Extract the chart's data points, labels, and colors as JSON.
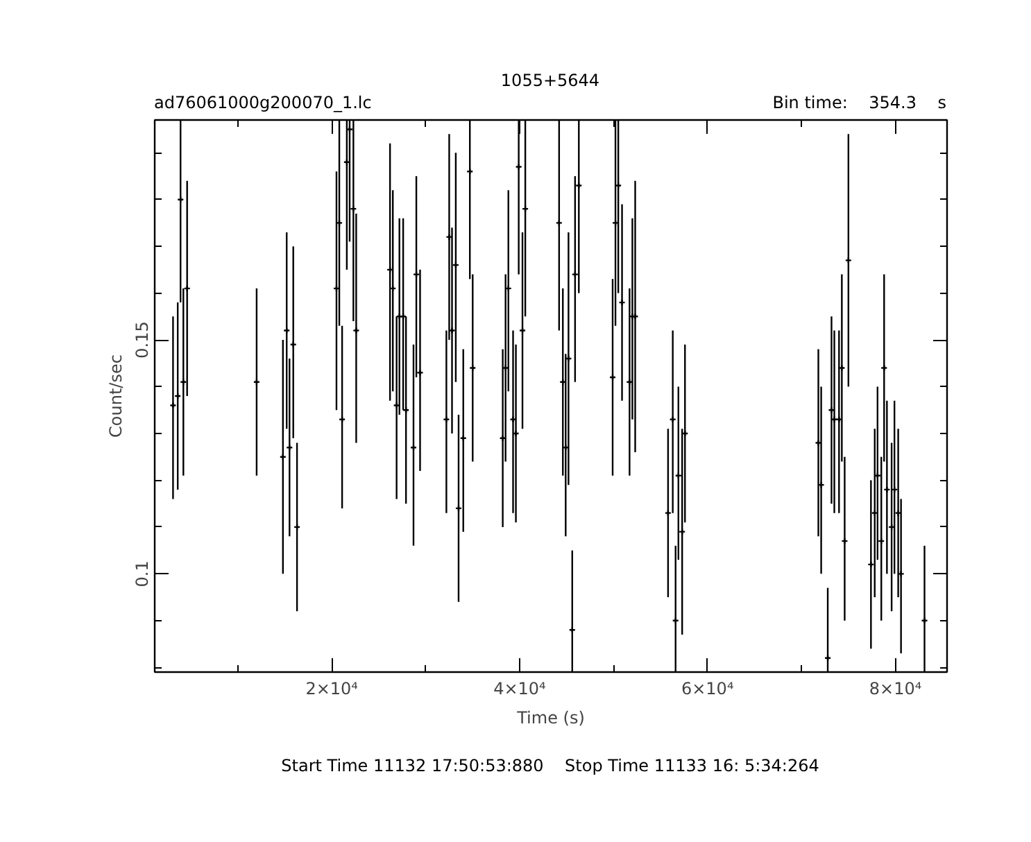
{
  "chart_data": {
    "type": "scatter",
    "title": "1055+5644",
    "subtitle": "ad76061000g200070_1.lc",
    "annotations": [
      "Bin time:    354.3    s",
      "Start Time 11132 17:50:53:880    Stop Time 11133 16: 5:34:264"
    ],
    "xlabel": "Time (s)",
    "ylabel": "Count/sec",
    "marker": "cross",
    "grid": false,
    "xlim": [
      1150,
      85500
    ],
    "ylim": [
      0.079,
      0.197
    ],
    "xticks": [
      {
        "value": 20000,
        "label": "2×10⁴"
      },
      {
        "value": 40000,
        "label": "4×10⁴"
      },
      {
        "value": 60000,
        "label": "6×10⁴"
      },
      {
        "value": 80000,
        "label": "8×10⁴"
      }
    ],
    "yticks": [
      0.1,
      0.15
    ],
    "series": [
      {
        "color": "#000000",
        "x": [
          3100,
          3600,
          3900,
          4200,
          4600,
          12000,
          14800,
          15200,
          15500,
          15900,
          16300,
          20500,
          20800,
          21100,
          21600,
          21900,
          22300,
          22600,
          26200,
          26500,
          26900,
          27200,
          27600,
          27900,
          28700,
          29000,
          29400,
          32200,
          32500,
          32800,
          33200,
          33500,
          34000,
          34700,
          35000,
          38200,
          38500,
          38800,
          39300,
          39600,
          39900,
          40300,
          40600,
          44200,
          44600,
          44900,
          45200,
          45600,
          45900,
          46300,
          49900,
          50200,
          50500,
          50900,
          51700,
          52000,
          52300,
          55800,
          56300,
          56600,
          56900,
          57300,
          57600,
          71800,
          72100,
          72800,
          73200,
          73500,
          74000,
          74300,
          74600,
          75000,
          77400,
          77800,
          78100,
          78500,
          78800,
          79100,
          79600,
          79900,
          80300,
          80600,
          83100
        ],
        "values": [
          0.136,
          0.138,
          0.18,
          0.141,
          0.161,
          0.141,
          0.125,
          0.152,
          0.127,
          0.149,
          0.11,
          0.161,
          0.175,
          0.133,
          0.188,
          0.195,
          0.178,
          0.152,
          0.165,
          0.161,
          0.136,
          0.155,
          0.155,
          0.135,
          0.127,
          0.164,
          0.143,
          0.133,
          0.172,
          0.152,
          0.166,
          0.114,
          0.129,
          0.186,
          0.144,
          0.129,
          0.144,
          0.161,
          0.133,
          0.13,
          0.187,
          0.152,
          0.178,
          0.175,
          0.141,
          0.127,
          0.146,
          0.088,
          0.164,
          0.183,
          0.142,
          0.175,
          0.183,
          0.158,
          0.141,
          0.155,
          0.155,
          0.113,
          0.133,
          0.09,
          0.121,
          0.109,
          0.13,
          0.128,
          0.119,
          0.082,
          0.135,
          0.133,
          0.133,
          0.144,
          0.107,
          0.167,
          0.102,
          0.113,
          0.121,
          0.107,
          0.144,
          0.118,
          0.11,
          0.118,
          0.113,
          0.1,
          0.09
        ],
        "errors": [
          [
            0.116,
            0.155
          ],
          [
            0.118,
            0.158
          ],
          [
            0.158,
            0.197
          ],
          [
            0.121,
            0.161
          ],
          [
            0.138,
            0.184
          ],
          [
            0.121,
            0.161
          ],
          [
            0.1,
            0.15
          ],
          [
            0.131,
            0.173
          ],
          [
            0.108,
            0.146
          ],
          [
            0.129,
            0.17
          ],
          [
            0.092,
            0.128
          ],
          [
            0.135,
            0.186
          ],
          [
            0.153,
            0.197
          ],
          [
            0.114,
            0.153
          ],
          [
            0.165,
            0.197
          ],
          [
            0.171,
            0.197
          ],
          [
            0.154,
            0.197
          ],
          [
            0.128,
            0.177
          ],
          [
            0.137,
            0.192
          ],
          [
            0.139,
            0.182
          ],
          [
            0.116,
            0.155
          ],
          [
            0.134,
            0.176
          ],
          [
            0.135,
            0.176
          ],
          [
            0.115,
            0.155
          ],
          [
            0.106,
            0.149
          ],
          [
            0.142,
            0.185
          ],
          [
            0.122,
            0.165
          ],
          [
            0.113,
            0.152
          ],
          [
            0.15,
            0.194
          ],
          [
            0.13,
            0.174
          ],
          [
            0.141,
            0.19
          ],
          [
            0.094,
            0.134
          ],
          [
            0.109,
            0.148
          ],
          [
            0.163,
            0.197
          ],
          [
            0.124,
            0.164
          ],
          [
            0.11,
            0.148
          ],
          [
            0.124,
            0.164
          ],
          [
            0.139,
            0.182
          ],
          [
            0.113,
            0.152
          ],
          [
            0.111,
            0.149
          ],
          [
            0.164,
            0.197
          ],
          [
            0.131,
            0.173
          ],
          [
            0.155,
            0.197
          ],
          [
            0.152,
            0.197
          ],
          [
            0.121,
            0.161
          ],
          [
            0.108,
            0.147
          ],
          [
            0.119,
            0.173
          ],
          [
            0.079,
            0.105
          ],
          [
            0.141,
            0.185
          ],
          [
            0.16,
            0.197
          ],
          [
            0.121,
            0.163
          ],
          [
            0.153,
            0.197
          ],
          [
            0.16,
            0.197
          ],
          [
            0.137,
            0.179
          ],
          [
            0.121,
            0.161
          ],
          [
            0.133,
            0.176
          ],
          [
            0.126,
            0.184
          ],
          [
            0.095,
            0.131
          ],
          [
            0.113,
            0.152
          ],
          [
            0.079,
            0.106
          ],
          [
            0.103,
            0.14
          ],
          [
            0.087,
            0.131
          ],
          [
            0.111,
            0.149
          ],
          [
            0.108,
            0.148
          ],
          [
            0.1,
            0.14
          ],
          [
            0.079,
            0.097
          ],
          [
            0.115,
            0.155
          ],
          [
            0.113,
            0.152
          ],
          [
            0.113,
            0.152
          ],
          [
            0.124,
            0.164
          ],
          [
            0.09,
            0.125
          ],
          [
            0.14,
            0.194
          ],
          [
            0.084,
            0.12
          ],
          [
            0.095,
            0.131
          ],
          [
            0.103,
            0.14
          ],
          [
            0.09,
            0.125
          ],
          [
            0.124,
            0.164
          ],
          [
            0.1,
            0.137
          ],
          [
            0.092,
            0.128
          ],
          [
            0.1,
            0.137
          ],
          [
            0.095,
            0.131
          ],
          [
            0.083,
            0.116
          ],
          [
            0.079,
            0.106
          ]
        ]
      }
    ]
  }
}
